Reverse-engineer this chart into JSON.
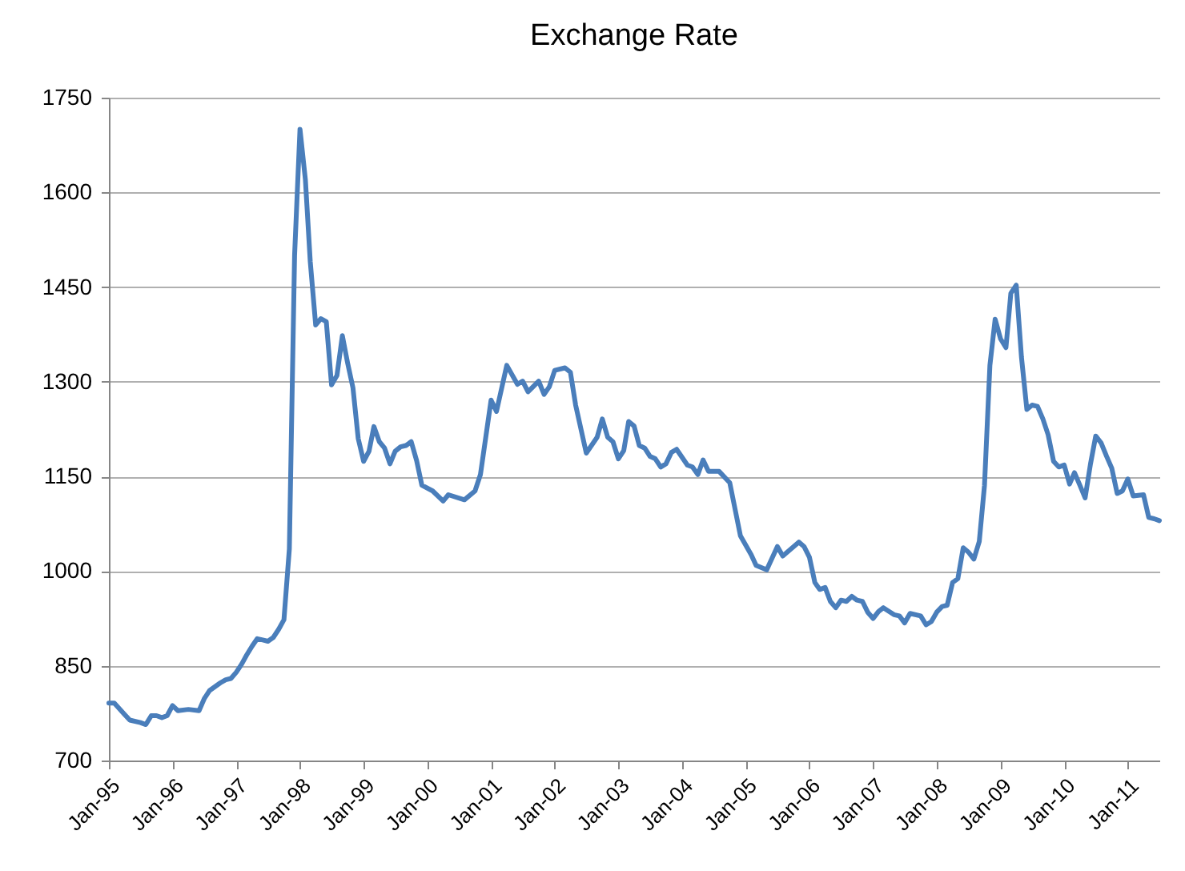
{
  "chart_data": {
    "type": "line",
    "title": "Exchange Rate",
    "x": [
      "1995-01",
      "1995-02",
      "1995-04",
      "1995-05",
      "1995-07",
      "1995-08",
      "1995-09",
      "1995-10",
      "1995-11",
      "1995-12",
      "1996-01",
      "1996-02",
      "1996-04",
      "1996-06",
      "1996-07",
      "1996-08",
      "1996-10",
      "1996-11",
      "1996-12",
      "1997-01",
      "1997-02",
      "1997-03",
      "1997-04",
      "1997-05",
      "1997-06",
      "1997-07",
      "1997-08",
      "1997-09",
      "1997-10",
      "1997-11",
      "1997-12",
      "1998-01",
      "1998-02",
      "1998-03",
      "1998-04",
      "1998-05",
      "1998-06",
      "1998-07",
      "1998-08",
      "1998-09",
      "1998-10",
      "1998-11",
      "1998-12",
      "1999-01",
      "1999-02",
      "1999-03",
      "1999-04",
      "1999-05",
      "1999-06",
      "1999-07",
      "1999-08",
      "1999-09",
      "1999-10",
      "1999-11",
      "1999-12",
      "2000-02",
      "2000-04",
      "2000-05",
      "2000-08",
      "2000-10",
      "2000-11",
      "2001-01",
      "2001-02",
      "2001-04",
      "2001-06",
      "2001-07",
      "2001-08",
      "2001-10",
      "2001-11",
      "2001-12",
      "2002-01",
      "2002-03",
      "2002-04",
      "2002-05",
      "2002-07",
      "2002-09",
      "2002-10",
      "2002-11",
      "2002-12",
      "2003-01",
      "2003-02",
      "2003-03",
      "2003-04",
      "2003-05",
      "2003-06",
      "2003-07",
      "2003-08",
      "2003-09",
      "2003-10",
      "2003-11",
      "2003-12",
      "2004-02",
      "2004-03",
      "2004-04",
      "2004-05",
      "2004-06",
      "2004-08",
      "2004-10",
      "2004-12",
      "2005-02",
      "2005-03",
      "2005-05",
      "2005-07",
      "2005-08",
      "2005-11",
      "2005-12",
      "2006-01",
      "2006-02",
      "2006-03",
      "2006-04",
      "2006-05",
      "2006-06",
      "2006-07",
      "2006-08",
      "2006-09",
      "2006-10",
      "2006-11",
      "2006-12",
      "2007-01",
      "2007-02",
      "2007-03",
      "2007-05",
      "2007-06",
      "2007-07",
      "2007-08",
      "2007-10",
      "2007-11",
      "2007-12",
      "2008-01",
      "2008-02",
      "2008-03",
      "2008-04",
      "2008-05",
      "2008-06",
      "2008-07",
      "2008-08",
      "2008-09",
      "2008-10",
      "2008-11",
      "2008-12",
      "2009-01",
      "2009-02",
      "2009-03",
      "2009-04",
      "2009-05",
      "2009-06",
      "2009-07",
      "2009-08",
      "2009-09",
      "2009-10",
      "2009-11",
      "2009-12",
      "2010-01",
      "2010-02",
      "2010-03",
      "2010-04",
      "2010-05",
      "2010-06",
      "2010-07",
      "2010-08",
      "2010-09",
      "2010-10",
      "2010-11",
      "2010-12",
      "2011-01",
      "2011-02",
      "2011-04",
      "2011-05",
      "2011-06",
      "2011-07"
    ],
    "series": [
      {
        "color": "#4a7ebb",
        "values": [
          791,
          791,
          773,
          764,
          760,
          757,
          771,
          771,
          768,
          771,
          787,
          779,
          781,
          779,
          798,
          811,
          823,
          828,
          830,
          840,
          853,
          867,
          881,
          893,
          891,
          889,
          895,
          908,
          923,
          1035,
          1500,
          1700,
          1620,
          1490,
          1390,
          1400,
          1395,
          1295,
          1310,
          1373,
          1330,
          1290,
          1210,
          1174,
          1190,
          1229,
          1205,
          1195,
          1170,
          1190,
          1197,
          1199,
          1205,
          1175,
          1136,
          1127,
          1111,
          1121,
          1113,
          1127,
          1153,
          1271,
          1253,
          1326,
          1296,
          1301,
          1284,
          1301,
          1280,
          1292,
          1318,
          1322,
          1315,
          1263,
          1187,
          1212,
          1241,
          1212,
          1205,
          1178,
          1191,
          1237,
          1230,
          1199,
          1195,
          1182,
          1178,
          1165,
          1170,
          1188,
          1193,
          1168,
          1165,
          1153,
          1176,
          1158,
          1158,
          1140,
          1056,
          1026,
          1009,
          1002,
          1039,
          1024,
          1046,
          1039,
          1022,
          982,
          971,
          974,
          952,
          942,
          954,
          952,
          960,
          954,
          952,
          935,
          925,
          936,
          942,
          931,
          929,
          918,
          933,
          929,
          915,
          920,
          935,
          944,
          946,
          982,
          988,
          1037,
          1030,
          1019,
          1047,
          1136,
          1326,
          1399,
          1368,
          1354,
          1440,
          1453,
          1339,
          1256,
          1263,
          1261,
          1241,
          1216,
          1174,
          1165,
          1168,
          1138,
          1156,
          1136,
          1116,
          1170,
          1214,
          1203,
          1182,
          1163,
          1123,
          1127,
          1146,
          1119,
          1121,
          1085,
          1083,
          1080
        ]
      }
    ],
    "xlim": [
      "1995-01",
      "2011-07"
    ],
    "xticks": [
      {
        "value": "1995-01",
        "label": "Jan-95"
      },
      {
        "value": "1996-01",
        "label": "Jan-96"
      },
      {
        "value": "1997-01",
        "label": "Jan-97"
      },
      {
        "value": "1998-01",
        "label": "Jan-98"
      },
      {
        "value": "1999-01",
        "label": "Jan-99"
      },
      {
        "value": "2000-01",
        "label": "Jan-00"
      },
      {
        "value": "2001-01",
        "label": "Jan-01"
      },
      {
        "value": "2002-01",
        "label": "Jan-02"
      },
      {
        "value": "2003-01",
        "label": "Jan-03"
      },
      {
        "value": "2004-01",
        "label": "Jan-04"
      },
      {
        "value": "2005-01",
        "label": "Jan-05"
      },
      {
        "value": "2006-01",
        "label": "Jan-06"
      },
      {
        "value": "2007-01",
        "label": "Jan-07"
      },
      {
        "value": "2008-01",
        "label": "Jan-08"
      },
      {
        "value": "2009-01",
        "label": "Jan-09"
      },
      {
        "value": "2010-01",
        "label": "Jan-10"
      },
      {
        "value": "2011-01",
        "label": "Jan-11"
      }
    ],
    "ylim": [
      700,
      1750
    ],
    "yticks": [
      700,
      850,
      1000,
      1150,
      1300,
      1450,
      1600,
      1750
    ],
    "grid": "y",
    "marker": "none",
    "line_style": "solid"
  }
}
